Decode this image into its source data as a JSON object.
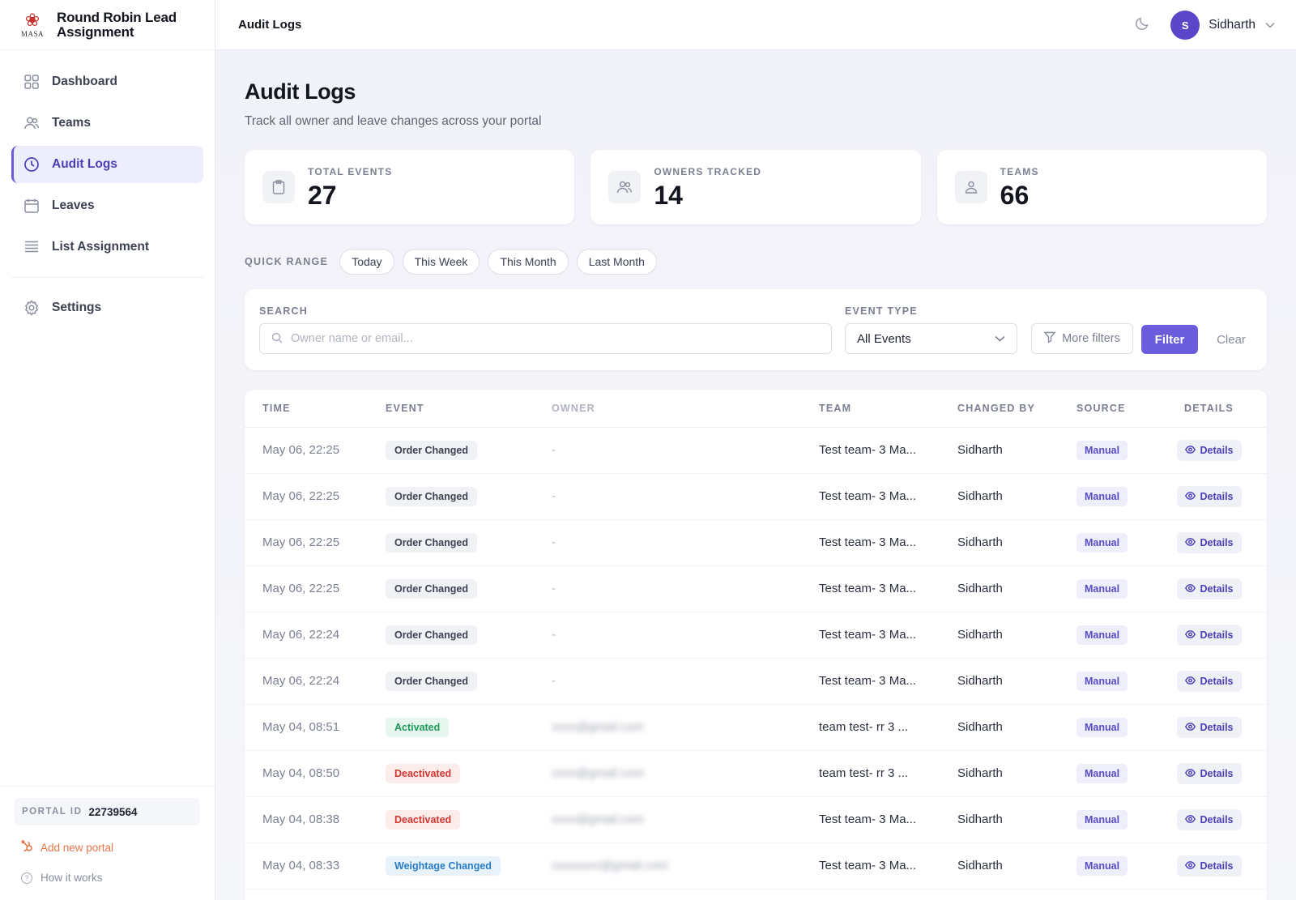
{
  "brand": {
    "name_line1": "Round Robin Lead",
    "name_line2": "Assignment",
    "logo_text": "MASA"
  },
  "nav": [
    {
      "label": "Dashboard",
      "icon": "grid-icon"
    },
    {
      "label": "Teams",
      "icon": "users-icon"
    },
    {
      "label": "Audit Logs",
      "icon": "clock-icon",
      "active": true
    },
    {
      "label": "Leaves",
      "icon": "calendar-icon"
    },
    {
      "label": "List Assignment",
      "icon": "list-icon"
    },
    {
      "label": "Settings",
      "icon": "gear-icon"
    }
  ],
  "sidebar_bottom": {
    "portal_label": "PORTAL ID",
    "portal_id": "22739564",
    "add_portal": "Add new portal",
    "how_it_works": "How it works"
  },
  "header": {
    "title": "Audit Logs",
    "user_initial": "S",
    "user_name": "Sidharth"
  },
  "page": {
    "title": "Audit Logs",
    "subtitle": "Track all owner and leave changes across your portal"
  },
  "stats": [
    {
      "label": "TOTAL EVENTS",
      "value": "27",
      "icon": "clipboard-icon"
    },
    {
      "label": "OWNERS TRACKED",
      "value": "14",
      "icon": "users-icon"
    },
    {
      "label": "TEAMS",
      "value": "66",
      "icon": "users-icon"
    }
  ],
  "quick_range": {
    "label": "QUICK RANGE",
    "options": [
      "Today",
      "This Week",
      "This Month",
      "Last Month"
    ]
  },
  "filters": {
    "search_label": "SEARCH",
    "search_placeholder": "Owner name or email...",
    "event_type_label": "EVENT TYPE",
    "event_type_value": "All Events",
    "more_filters": "More filters",
    "filter_button": "Filter",
    "clear_button": "Clear"
  },
  "table": {
    "columns": [
      "TIME",
      "EVENT",
      "OWNER",
      "TEAM",
      "CHANGED BY",
      "SOURCE",
      "DETAILS"
    ],
    "rows": [
      {
        "time": "May 06, 22:25",
        "event": "Order Changed",
        "event_color": "gray",
        "owner": "-",
        "team": "Test team- 3 Ma...",
        "changed_by": "Sidharth",
        "source": "Manual",
        "details": "Details"
      },
      {
        "time": "May 06, 22:25",
        "event": "Order Changed",
        "event_color": "gray",
        "owner": "-",
        "team": "Test team- 3 Ma...",
        "changed_by": "Sidharth",
        "source": "Manual",
        "details": "Details"
      },
      {
        "time": "May 06, 22:25",
        "event": "Order Changed",
        "event_color": "gray",
        "owner": "-",
        "team": "Test team- 3 Ma...",
        "changed_by": "Sidharth",
        "source": "Manual",
        "details": "Details"
      },
      {
        "time": "May 06, 22:25",
        "event": "Order Changed",
        "event_color": "gray",
        "owner": "-",
        "team": "Test team- 3 Ma...",
        "changed_by": "Sidharth",
        "source": "Manual",
        "details": "Details"
      },
      {
        "time": "May 06, 22:24",
        "event": "Order Changed",
        "event_color": "gray",
        "owner": "-",
        "team": "Test team- 3 Ma...",
        "changed_by": "Sidharth",
        "source": "Manual",
        "details": "Details"
      },
      {
        "time": "May 06, 22:24",
        "event": "Order Changed",
        "event_color": "gray",
        "owner": "-",
        "team": "Test team- 3 Ma...",
        "changed_by": "Sidharth",
        "source": "Manual",
        "details": "Details"
      },
      {
        "time": "May 04, 08:51",
        "event": "Activated",
        "event_color": "green",
        "owner": "xxxx@gmail.com",
        "owner_blurred": true,
        "team": "team test- rr 3 ...",
        "changed_by": "Sidharth",
        "source": "Manual",
        "details": "Details"
      },
      {
        "time": "May 04, 08:50",
        "event": "Deactivated",
        "event_color": "red",
        "owner": "xxxx@gmail.com",
        "owner_blurred": true,
        "team": "team test- rr 3 ...",
        "changed_by": "Sidharth",
        "source": "Manual",
        "details": "Details"
      },
      {
        "time": "May 04, 08:38",
        "event": "Deactivated",
        "event_color": "red",
        "owner": "xxxx@gmail.com",
        "owner_blurred": true,
        "team": "Test team- 3 Ma...",
        "changed_by": "Sidharth",
        "source": "Manual",
        "details": "Details"
      },
      {
        "time": "May 04, 08:33",
        "event": "Weightage Changed",
        "event_color": "blue",
        "owner": "xxxxxxxx@gmail.com",
        "owner_blurred": true,
        "team": "Test team- 3 Ma...",
        "changed_by": "Sidharth",
        "source": "Manual",
        "details": "Details"
      }
    ]
  },
  "colors": {
    "accent": "#6b5cdb",
    "avatar": "#5b45c9",
    "add_portal": "#e8764a"
  }
}
